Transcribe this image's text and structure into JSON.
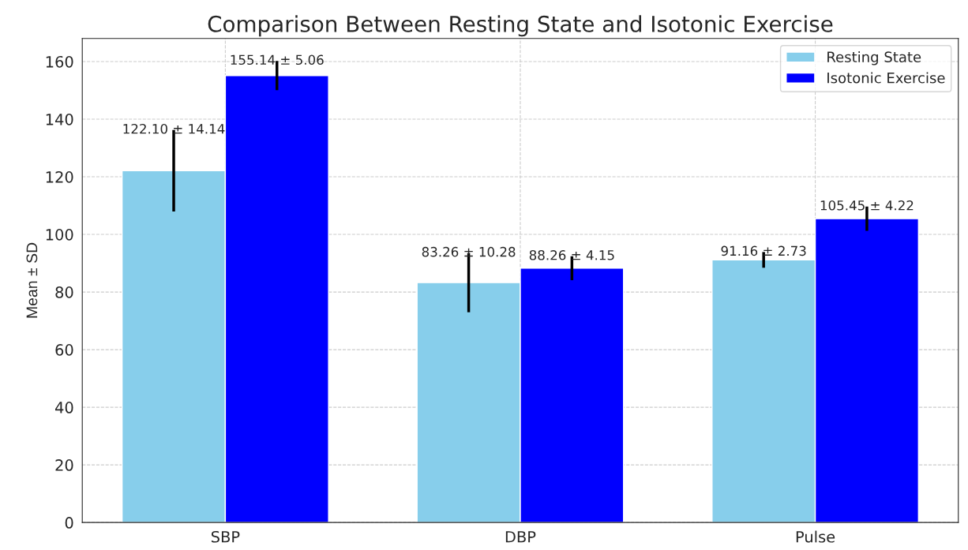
{
  "chart_data": {
    "type": "bar",
    "title": "Comparison Between Resting State and Isotonic Exercise",
    "ylabel": "Mean ± SD",
    "categories": [
      "SBP",
      "DBP",
      "Pulse"
    ],
    "series": [
      {
        "name": "Resting State",
        "color": "#87ceeb",
        "values": [
          122.1,
          83.26,
          91.16
        ],
        "errors": [
          14.14,
          10.28,
          2.73
        ],
        "value_labels": [
          "122.10 ± 14.14",
          "83.26 ± 10.28",
          "91.16 ± 2.73"
        ]
      },
      {
        "name": "Isotonic Exercise",
        "color": "#0000ff",
        "values": [
          155.14,
          88.26,
          105.45
        ],
        "errors": [
          5.06,
          4.15,
          4.22
        ],
        "value_labels": [
          "155.14 ± 5.06",
          "88.26 ± 4.15",
          "105.45 ± 4.22"
        ]
      }
    ],
    "ylim": [
      0,
      168
    ],
    "yticks": [
      0,
      20,
      40,
      60,
      80,
      100,
      120,
      140,
      160
    ],
    "grid": true,
    "legend": "top right"
  }
}
